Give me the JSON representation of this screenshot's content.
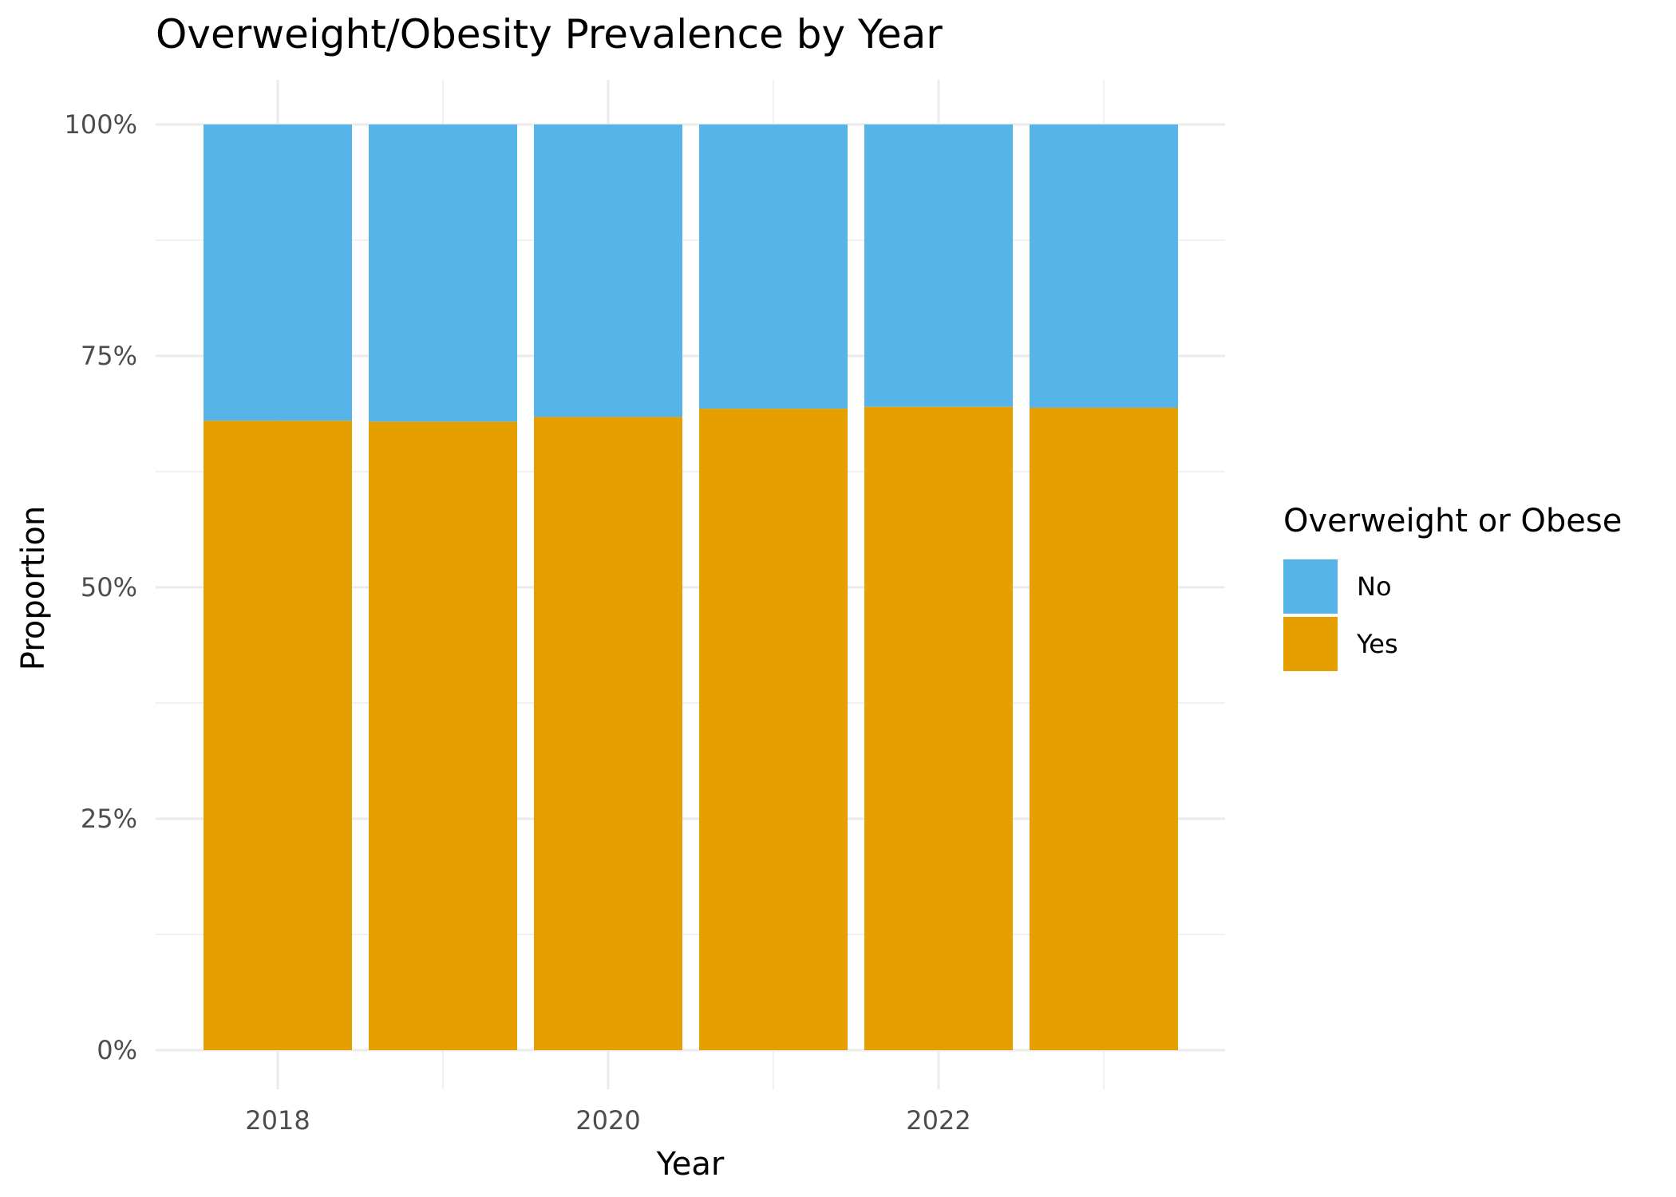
{
  "chart_data": {
    "type": "bar",
    "stacked": true,
    "title": "Overweight/Obesity Prevalence by Year",
    "xlabel": "Year",
    "ylabel": "Proportion",
    "categories": [
      2018,
      2019,
      2020,
      2021,
      2022,
      2023
    ],
    "x_tick_labels": [
      "2018",
      "2020",
      "2022"
    ],
    "y_tick_labels": [
      "0%",
      "25%",
      "50%",
      "75%",
      "100%"
    ],
    "ylim": [
      0,
      1
    ],
    "grid": true,
    "legend": {
      "title": "Overweight or Obese",
      "position": "right"
    },
    "series": [
      {
        "name": "Yes",
        "color": "#E69F00",
        "values": [
          0.68,
          0.679,
          0.684,
          0.693,
          0.695,
          0.694
        ]
      },
      {
        "name": "No",
        "color": "#56B4E9",
        "values": [
          0.32,
          0.321,
          0.316,
          0.307,
          0.305,
          0.306
        ]
      }
    ]
  }
}
